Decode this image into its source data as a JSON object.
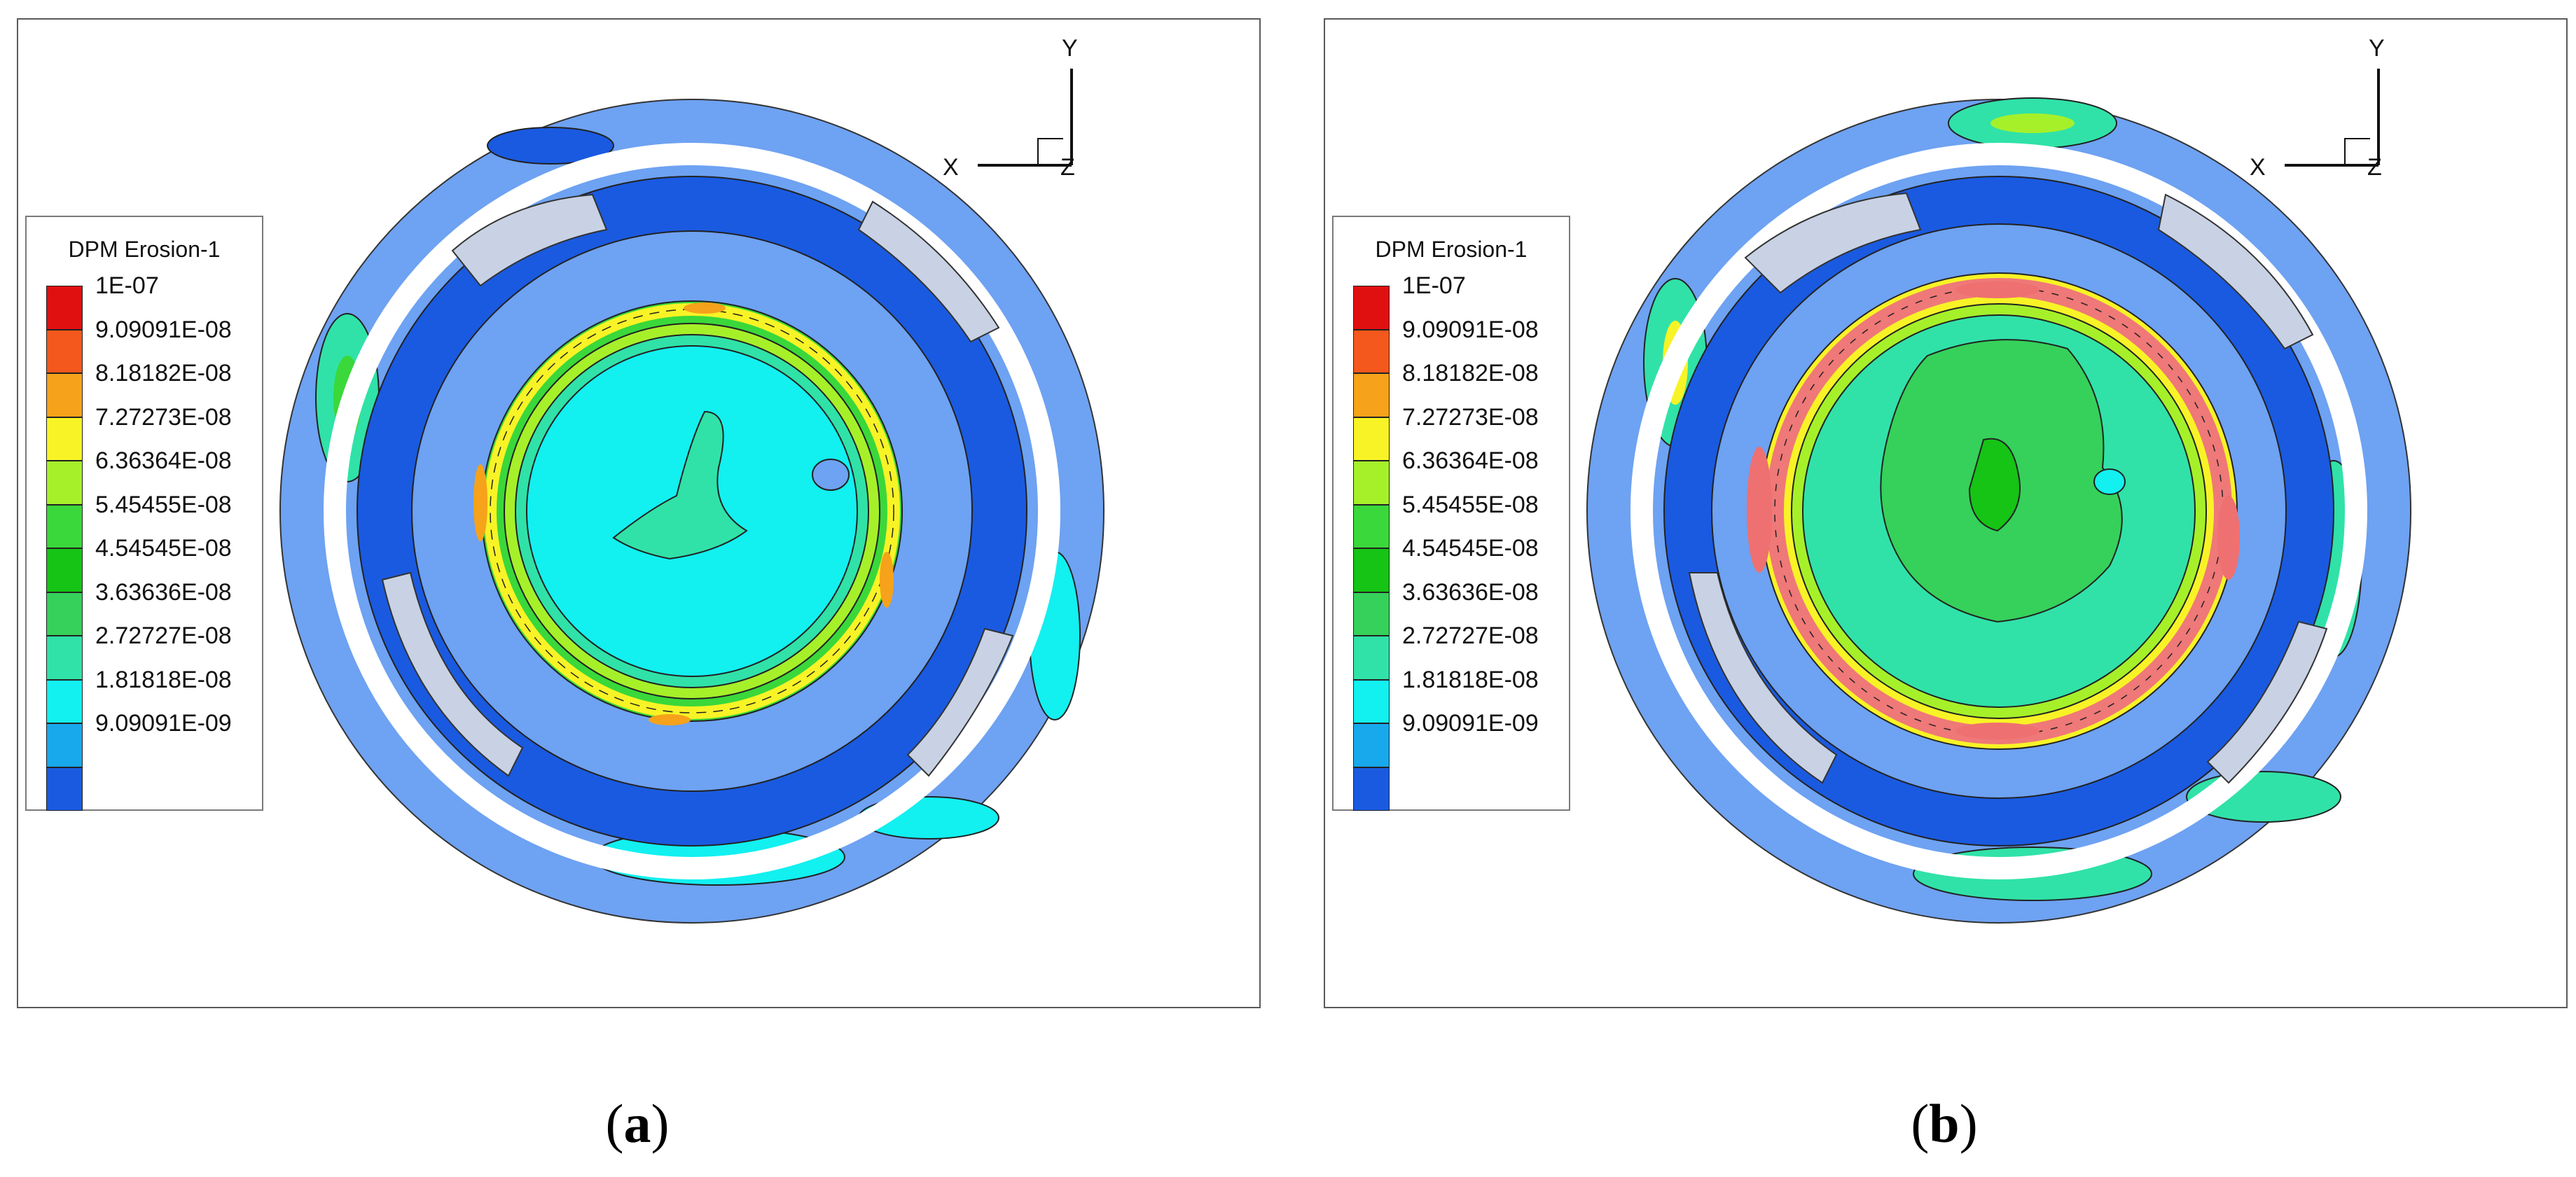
{
  "panels": [
    {
      "id": "a",
      "caption": "a",
      "legend": {
        "title": "DPM Erosion-1",
        "levels": [
          "1E-07",
          "9.09091E-08",
          "8.18182E-08",
          "7.27273E-08",
          "6.36364E-08",
          "5.45455E-08",
          "4.54545E-08",
          "3.63636E-08",
          "2.72727E-08",
          "1.81818E-08",
          "9.09091E-09"
        ]
      },
      "axes": {
        "x": "X",
        "y": "Y",
        "z": "Z"
      }
    },
    {
      "id": "b",
      "caption": "b",
      "legend": {
        "title": "DPM Erosion-1",
        "levels": [
          "1E-07",
          "9.09091E-08",
          "8.18182E-08",
          "7.27273E-08",
          "6.36364E-08",
          "5.45455E-08",
          "4.54545E-08",
          "3.63636E-08",
          "2.72727E-08",
          "1.81818E-08",
          "9.09091E-09"
        ]
      },
      "axes": {
        "x": "X",
        "y": "Y",
        "z": "Z"
      }
    }
  ],
  "colors": {
    "scale": [
      "#e01010",
      "#f4581c",
      "#f6a21a",
      "#f8f326",
      "#a6f02a",
      "#3ad83a",
      "#15c415",
      "#35d15a",
      "#30e2a8",
      "#12f0f0",
      "#18a8ec",
      "#1a5ae0"
    ],
    "background_blue": "#6ea2f2"
  }
}
